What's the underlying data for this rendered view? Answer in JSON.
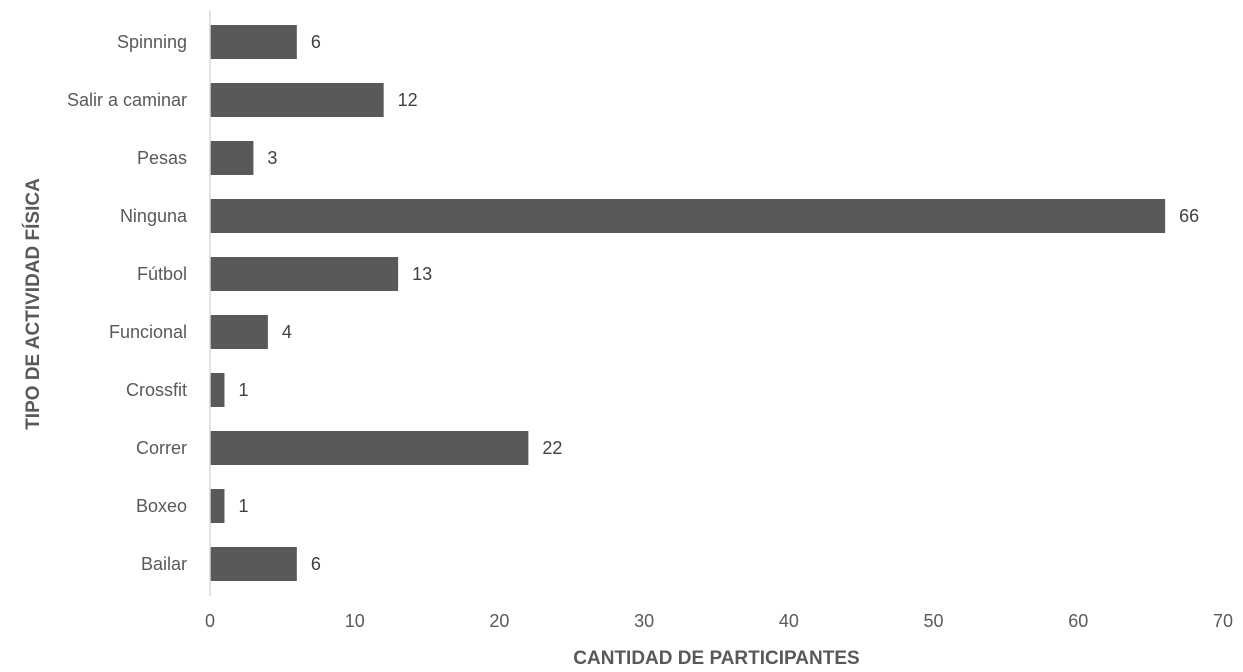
{
  "chart_data": {
    "type": "bar",
    "orientation": "horizontal",
    "categories": [
      "Spinning",
      "Salir a caminar",
      "Pesas",
      "Ninguna",
      "Fútbol",
      "Funcional",
      "Crossfit",
      "Correr",
      "Boxeo",
      "Bailar"
    ],
    "values": [
      6,
      12,
      3,
      66,
      13,
      4,
      1,
      22,
      1,
      6
    ],
    "value_labels": [
      "6",
      "12",
      "3",
      "66",
      "13",
      "4",
      "1",
      "22",
      "1",
      "6"
    ],
    "x_ticks": [
      "0",
      "10",
      "20",
      "30",
      "40",
      "50",
      "60",
      "70"
    ],
    "xlim": [
      0,
      70
    ],
    "xlabel": "CANTIDAD DE PARTICIPANTES",
    "ylabel": "TIPO DE ACTIVIDAD FÍSICA",
    "grid": false,
    "legend": "none",
    "bar_color": "#595959",
    "axis_color": "#d9d9d9"
  }
}
